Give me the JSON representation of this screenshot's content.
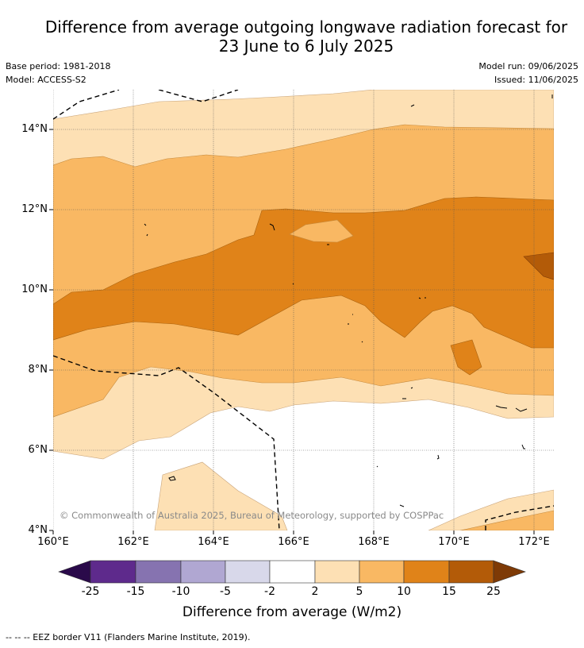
{
  "title_line1": "Difference from average outgoing longwave radiation forecast for",
  "title_line2": "23 June to 6 July 2025",
  "base_period": "Base period: 1981-2018",
  "model": "Model: ACCESS-S2",
  "model_run": "Model run: 09/06/2025",
  "issued": "Issued: 11/06/2025",
  "lat_labels": [
    "14°N",
    "12°N",
    "10°N",
    "8°N",
    "6°N",
    "4°N"
  ],
  "lon_labels": [
    "160°E",
    "162°E",
    "164°E",
    "166°E",
    "168°E",
    "170°E",
    "172°E"
  ],
  "copyright": "© Commonwealth of Australia 2025, Bureau of Meteorology, supported by COSPPac",
  "colorbar": {
    "title": "Difference from average (W/m2)",
    "ticks": [
      "-25",
      "-15",
      "-10",
      "-5",
      "-2",
      "2",
      "5",
      "10",
      "15",
      "25"
    ],
    "colors": [
      "#2a0a4a",
      "#5e2a8c",
      "#8673b0",
      "#b0a7d2",
      "#d8d8ea",
      "#ffffff",
      "#fde0b4",
      "#f9b863",
      "#e08319",
      "#b35b08",
      "#7e3a06"
    ]
  },
  "footnote": "--  --  -- EEZ border V11 (Flanders Marine Institute, 2019)."
}
